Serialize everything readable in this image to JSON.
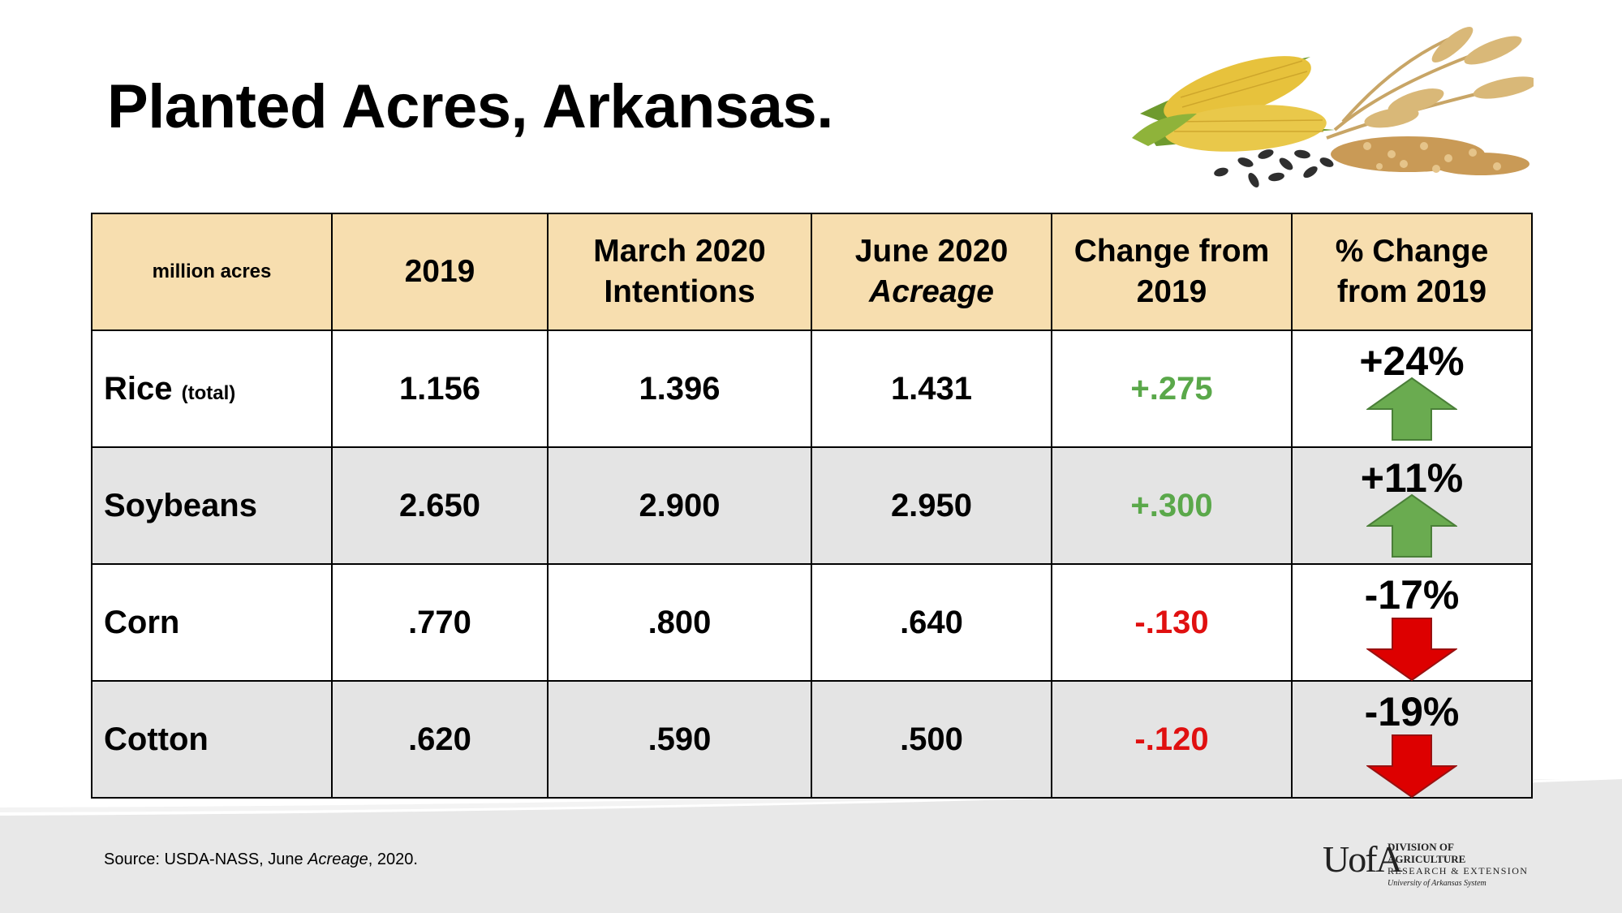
{
  "title": "Planted Acres, Arkansas.",
  "table": {
    "unit_label": "million acres",
    "columns": [
      {
        "line1": "2019",
        "line2": ""
      },
      {
        "line1": "March 2020",
        "line2": "Intentions"
      },
      {
        "line1": "June 2020",
        "line2": "Acreage"
      },
      {
        "line1": "Change from",
        "line2": "2019"
      },
      {
        "line1": "% Change",
        "line2": "from 2019"
      }
    ],
    "rows": [
      {
        "crop": "Rice",
        "note": "(total)",
        "v2019": "1.156",
        "march": "1.396",
        "june": "1.431",
        "change": "+.275",
        "pct": "+24%",
        "direction": "up"
      },
      {
        "crop": "Soybeans",
        "note": "",
        "v2019": "2.650",
        "march": "2.900",
        "june": "2.950",
        "change": "+.300",
        "pct": "+11%",
        "direction": "up"
      },
      {
        "crop": "Corn",
        "note": "",
        "v2019": ".770",
        "march": ".800",
        "june": ".640",
        "change": "-.130",
        "pct": "-17%",
        "direction": "down"
      },
      {
        "crop": "Cotton",
        "note": "",
        "v2019": ".620",
        "march": ".590",
        "june": ".500",
        "change": "-.120",
        "pct": "-19%",
        "direction": "down"
      }
    ]
  },
  "source": {
    "prefix": "Source: USDA-NASS, June ",
    "italic": "Acreage",
    "suffix": ", 2020."
  },
  "logo": {
    "mark": "UofA",
    "line1": "DIVISION OF AGRICULTURE",
    "line2": "RESEARCH & EXTENSION",
    "line3": "University of Arkansas System"
  },
  "colors": {
    "header_fill": "#f7deaf",
    "row_alt_fill": "#e4e4e4",
    "positive": "#5aa84a",
    "negative": "#e01010",
    "arrow_up": "#6aab50",
    "arrow_down": "#dd0000"
  },
  "icons": [
    "grain-crops-image",
    "arrow-up-icon",
    "arrow-down-icon",
    "uofa-logo"
  ]
}
